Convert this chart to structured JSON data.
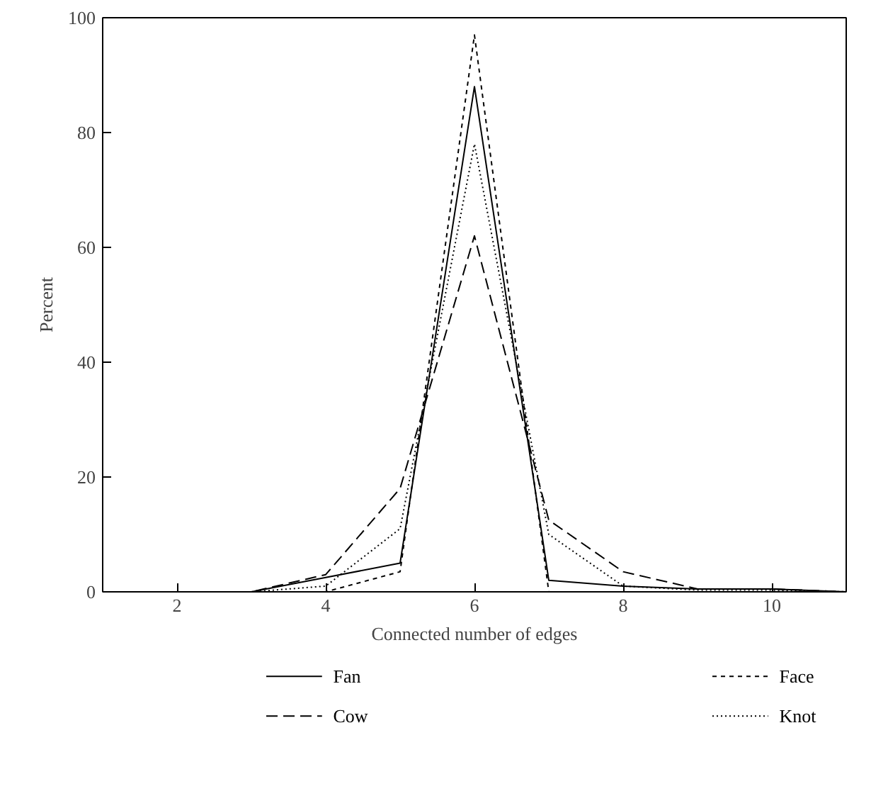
{
  "chart_data": {
    "type": "line",
    "xlabel": "Connected number of edges",
    "ylabel": "Percent",
    "x": [
      1,
      2,
      3,
      4,
      5,
      6,
      7,
      8,
      9,
      10,
      11
    ],
    "xlim": [
      1,
      11
    ],
    "xticks": [
      2,
      4,
      6,
      8,
      10
    ],
    "ylim": [
      0,
      100
    ],
    "yticks": [
      0,
      20,
      40,
      60,
      80,
      100
    ],
    "grid": false,
    "legend": "bottom",
    "series": [
      {
        "name": "Fan",
        "color": "#000000",
        "line_style": "solid",
        "values": [
          0,
          0,
          0,
          2.5,
          5,
          88,
          2,
          1,
          0.5,
          0.5,
          0
        ]
      },
      {
        "name": "Cow",
        "color": "#000000",
        "line_style": "longdash",
        "values": [
          0,
          0,
          0,
          3,
          18,
          62,
          12.5,
          3.5,
          0.5,
          0.5,
          0
        ]
      },
      {
        "name": "Face",
        "color": "#000000",
        "line_style": "dashed",
        "values": [
          0,
          0,
          0,
          0,
          3.5,
          97,
          0,
          0,
          0,
          0,
          0
        ]
      },
      {
        "name": "Knot",
        "color": "#000000",
        "line_style": "dotted",
        "values": [
          0,
          0,
          0,
          1,
          11,
          78,
          10,
          1,
          0.3,
          0.3,
          0
        ]
      }
    ]
  }
}
